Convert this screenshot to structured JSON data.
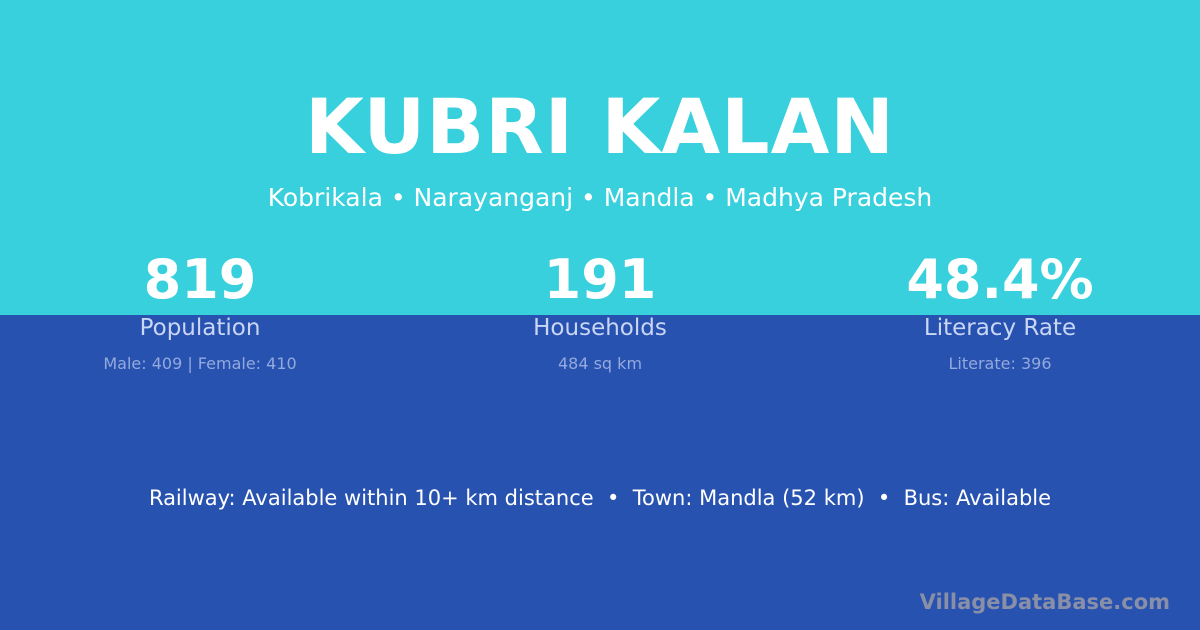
{
  "header": {
    "title": "KUBRI KALAN",
    "subtitle": "Kobrikala • Narayanganj • Mandla • Madhya Pradesh"
  },
  "stats": [
    {
      "value": "819",
      "label": "Population",
      "sub": "Male: 409 | Female: 410"
    },
    {
      "value": "191",
      "label": "Households",
      "sub": "484 sq km"
    },
    {
      "value": "48.4%",
      "label": "Literacy Rate",
      "sub": "Literate: 396"
    }
  ],
  "footer": {
    "text": "Railway: Available within 10+ km distance  •  Town: Mandla (52 km)  •  Bus: Available"
  },
  "brand": "VillageDataBase.com",
  "colors": {
    "top": "#37d0dc",
    "bottom": "#2752b0"
  }
}
